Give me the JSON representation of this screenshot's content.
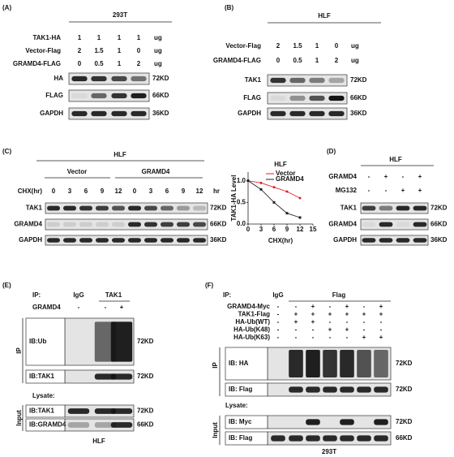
{
  "panels": {
    "A": {
      "label": "(A)",
      "header": "293T",
      "rows": [
        {
          "name": "TAK1-HA",
          "values": [
            "1",
            "1",
            "1",
            "1"
          ],
          "unit": "ug"
        },
        {
          "name": "Vector-Flag",
          "values": [
            "2",
            "1.5",
            "1",
            "0"
          ],
          "unit": "ug"
        },
        {
          "name": "GRAMD4-FLAG",
          "values": [
            "0",
            "0.5",
            "1",
            "2"
          ],
          "unit": "ug"
        }
      ],
      "blots": [
        {
          "name": "HA",
          "size": "72KD"
        },
        {
          "name": "FLAG",
          "size": "66KD"
        },
        {
          "name": "GAPDH",
          "size": "36KD"
        }
      ]
    },
    "B": {
      "label": "(B)",
      "header": "HLF",
      "rows": [
        {
          "name": "Vector-Flag",
          "values": [
            "2",
            "1.5",
            "1",
            "0"
          ],
          "unit": "ug"
        },
        {
          "name": "GRAMD4-FLAG",
          "values": [
            "0",
            "0.5",
            "1",
            "2"
          ],
          "unit": "ug"
        }
      ],
      "blots": [
        {
          "name": "TAK1",
          "size": "72KD"
        },
        {
          "name": "FLAG",
          "size": "66KD"
        },
        {
          "name": "GAPDH",
          "size": "36KD"
        }
      ]
    },
    "C": {
      "label": "(C)",
      "header": "HLF",
      "groups": [
        "Vector",
        "GRAMD4"
      ],
      "rows": [
        {
          "name": "CHX(hr)",
          "values": [
            "0",
            "3",
            "6",
            "9",
            "12",
            "0",
            "3",
            "6",
            "9",
            "12"
          ],
          "unit": "hr"
        }
      ],
      "blots": [
        {
          "name": "TAK1",
          "size": "72KD"
        },
        {
          "name": "GRAMD4",
          "size": "66KD"
        },
        {
          "name": "GAPDH",
          "size": "36KD"
        }
      ]
    },
    "D": {
      "label": "(D)",
      "header": "HLF",
      "rows": [
        {
          "name": "GRAMD4",
          "values": [
            "-",
            "+",
            "-",
            "+"
          ]
        },
        {
          "name": "MG132",
          "values": [
            "-",
            "-",
            "+",
            "+"
          ]
        }
      ],
      "blots": [
        {
          "name": "TAK1",
          "size": "72KD"
        },
        {
          "name": "GRAMD4",
          "size": "66KD"
        },
        {
          "name": "GAPDH",
          "size": "36KD"
        }
      ]
    },
    "E": {
      "label": "(E)",
      "ip": "IP:",
      "columns": [
        "IgG",
        "TAK1"
      ],
      "rows": [
        {
          "name": "GRAMD4",
          "values": [
            "-",
            "-",
            "+"
          ]
        }
      ],
      "ip_side": "IP",
      "input_side": "Input",
      "lysate": "Lysate:",
      "blots": [
        {
          "name": "IB:Ub",
          "size": "72KD"
        },
        {
          "name": "IB:TAK1",
          "size": "72KD"
        }
      ],
      "input_blots": [
        {
          "name": "IB:TAK1",
          "size": "72KD"
        },
        {
          "name": "IB:GRAMD4",
          "size": "66KD"
        }
      ],
      "cell": "HLF"
    },
    "F": {
      "label": "(F)",
      "ip": "IP:",
      "columns": [
        "IgG",
        "Flag"
      ],
      "rows": [
        {
          "name": "GRAMD4-Myc",
          "values": [
            "-",
            "-",
            "+",
            "-",
            "+",
            "-",
            "+"
          ]
        },
        {
          "name": "TAK1-Flag",
          "values": [
            "-",
            "+",
            "+",
            "+",
            "+",
            "+",
            "+"
          ]
        },
        {
          "name": "HA-Ub(WT)",
          "values": [
            "-",
            "+",
            "+",
            "-",
            "-",
            "-",
            "-"
          ]
        },
        {
          "name": "HA-Ub(K48)",
          "values": [
            "-",
            "-",
            "-",
            "+",
            "+",
            "-",
            "-"
          ]
        },
        {
          "name": "HA-Ub(K63)",
          "values": [
            "-",
            "-",
            "-",
            "-",
            "-",
            "+",
            "+"
          ]
        }
      ],
      "ip_side": "IP",
      "input_side": "Input",
      "lysate": "Lysate:",
      "blots": [
        {
          "name": "IB: HA",
          "size": "72KD"
        },
        {
          "name": "IB: Flag",
          "size": "72KD"
        }
      ],
      "input_blots": [
        {
          "name": "IB: Myc",
          "size": "72KD"
        },
        {
          "name": "IB: Flag",
          "size": "66KD"
        }
      ],
      "cell": "293T"
    }
  },
  "chart_data": {
    "type": "line",
    "title": "HLF",
    "x_label": "CHX(hr)",
    "y_label": "TAK1-HA Level",
    "x": [
      0,
      3,
      6,
      9,
      12
    ],
    "series": [
      {
        "name": "Vector",
        "color": "#e0202a",
        "values": [
          1.0,
          0.95,
          0.85,
          0.75,
          0.6
        ]
      },
      {
        "name": "GRAMD4",
        "color": "#222222",
        "values": [
          1.0,
          0.8,
          0.5,
          0.25,
          0.15
        ]
      }
    ],
    "xlim": [
      0,
      15
    ],
    "xticks": [
      0,
      3,
      6,
      9,
      12,
      15
    ],
    "ylim": [
      0,
      1.2
    ],
    "yticks": [
      {
        "value": 0,
        "label": "0.0"
      },
      0.5,
      {
        "value": 1,
        "label": "1.0"
      }
    ]
  }
}
